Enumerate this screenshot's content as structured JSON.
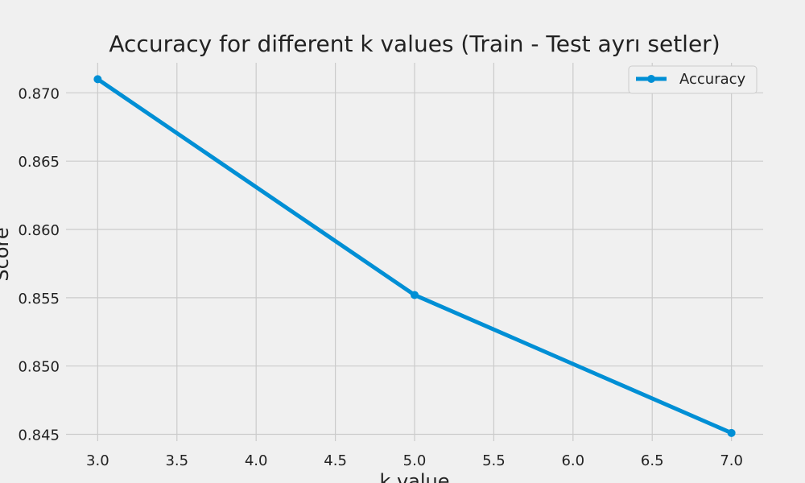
{
  "chart_data": {
    "type": "line",
    "title": "Accuracy for different k values (Train - Test ayrı setler)",
    "xlabel": "k value",
    "ylabel": "Score",
    "x": [
      3,
      5,
      7
    ],
    "series": [
      {
        "name": "Accuracy",
        "values": [
          0.871,
          0.8552,
          0.8451
        ],
        "color": "#008fd5"
      }
    ],
    "xlim": [
      2.8,
      7.2
    ],
    "ylim": [
      0.8445,
      0.8722
    ],
    "xticks": [
      3.0,
      3.5,
      4.0,
      4.5,
      5.0,
      5.5,
      6.0,
      6.5,
      7.0
    ],
    "xtick_labels": [
      "3.0",
      "3.5",
      "4.0",
      "4.5",
      "5.0",
      "5.5",
      "6.0",
      "6.5",
      "7.0"
    ],
    "yticks": [
      0.845,
      0.85,
      0.855,
      0.86,
      0.865,
      0.87
    ],
    "ytick_labels": [
      "0.845",
      "0.850",
      "0.855",
      "0.860",
      "0.865",
      "0.870"
    ],
    "grid": true,
    "legend_position": "top-right",
    "marker": "circle"
  }
}
